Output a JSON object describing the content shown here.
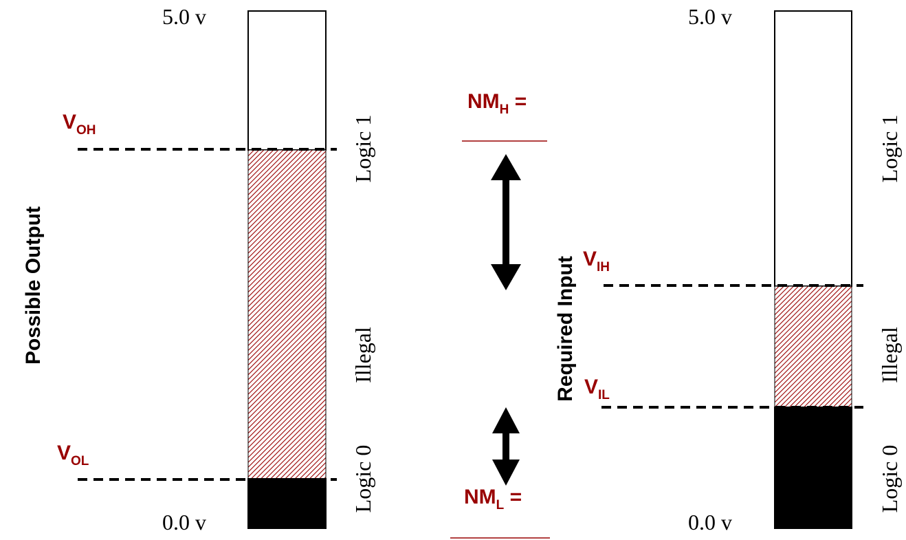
{
  "colors": {
    "accent": "#990000",
    "stroke": "#000000",
    "fill_low": "#000000",
    "fill_high": "#ffffff",
    "hatch": "#990000"
  },
  "output": {
    "title": "Possible Output",
    "top_label": "5.0 v",
    "bottom_label": "0.0 v",
    "voh": {
      "main": "V",
      "sub": "OH"
    },
    "vol": {
      "main": "V",
      "sub": "OL"
    },
    "regions": {
      "logic1": "Logic 1",
      "illegal": "Illegal",
      "logic0": "Logic 0"
    }
  },
  "input": {
    "title": "Required Input",
    "top_label": "5.0 v",
    "bottom_label": "0.0 v",
    "vih": {
      "main": "V",
      "sub": "IH"
    },
    "vil": {
      "main": "V",
      "sub": "IL"
    },
    "regions": {
      "logic1": "Logic 1",
      "illegal": "Illegal",
      "logic0": "Logic 0"
    }
  },
  "noise_margin": {
    "high": {
      "main": "NM",
      "sub": "H",
      "eq": " =",
      "blank": "______"
    },
    "low": {
      "main": "NM",
      "sub": "L",
      "eq": " =",
      "blank": "______"
    }
  }
}
